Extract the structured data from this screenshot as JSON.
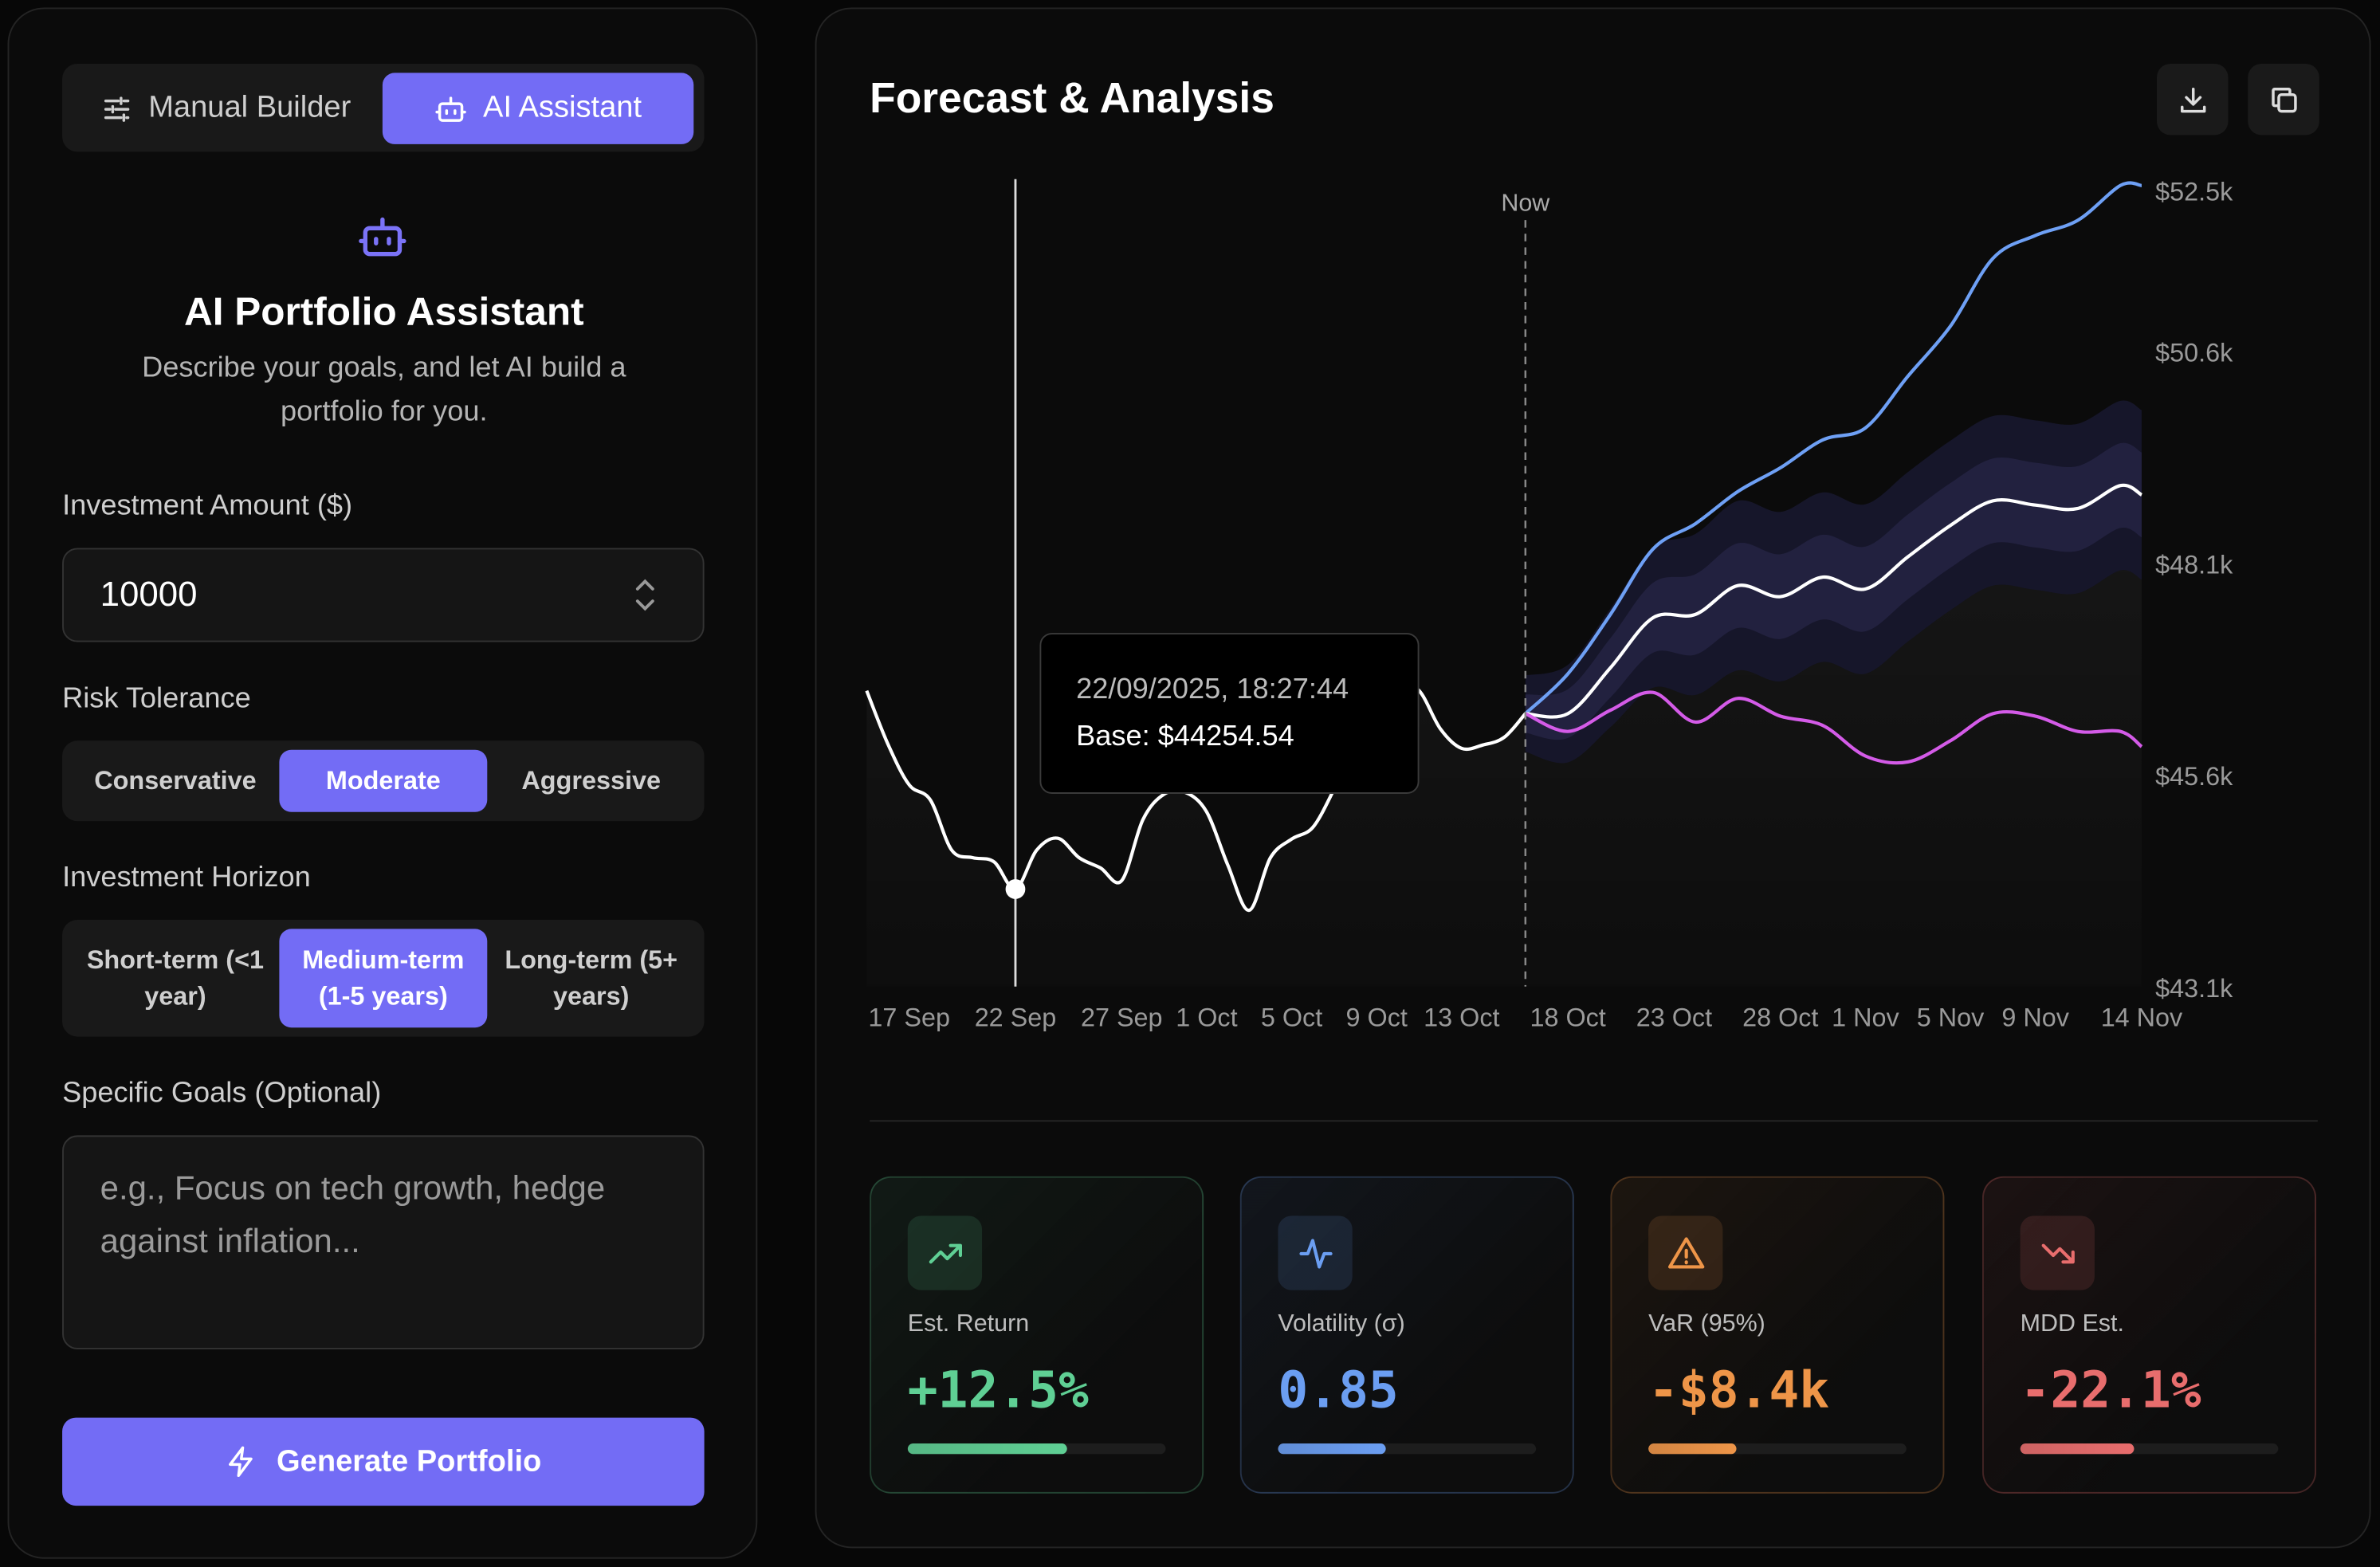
{
  "left_panel": {
    "tabs": [
      {
        "label": "Manual Builder",
        "icon": "sliders-icon",
        "active": false
      },
      {
        "label": "AI Assistant",
        "icon": "robot-icon",
        "active": true
      }
    ],
    "assistant_icon": "robot-icon",
    "title": "AI Portfolio Assistant",
    "subtitle_line1": "Describe your goals, and let AI build a",
    "subtitle_line2": "portfolio for you.",
    "investment_amount": {
      "label": "Investment Amount ($)",
      "value": "10000"
    },
    "risk_tolerance": {
      "label": "Risk Tolerance",
      "options": [
        "Conservative",
        "Moderate",
        "Aggressive"
      ],
      "selected": "Moderate"
    },
    "investment_horizon": {
      "label": "Investment Horizon",
      "options": [
        {
          "line1": "Short-term (<1",
          "line2": "year)"
        },
        {
          "line1": "Medium-term",
          "line2": "(1-5 years)"
        },
        {
          "line1": "Long-term (5+",
          "line2": "years)"
        }
      ],
      "selected": "Medium-term (1-5 years)"
    },
    "goals": {
      "label": "Specific Goals (Optional)",
      "placeholder": "e.g., Focus on tech growth, hedge against inflation..."
    },
    "generate_button": {
      "label": "Generate Portfolio",
      "icon": "lightning-icon"
    },
    "accent": "#736cf5"
  },
  "right_panel": {
    "title": "Forecast & Analysis",
    "actions": [
      {
        "icon": "download-icon"
      },
      {
        "icon": "copy-icon"
      }
    ],
    "tooltip": {
      "line1": "22/09/2025, 18:27:44",
      "line2": "Base: $44254.54"
    },
    "metrics": [
      {
        "label": "Est. Return",
        "value": "+12.5%",
        "icon": "trending-up-icon",
        "color": "#5fcf94",
        "bar_fraction": 0.62
      },
      {
        "label": "Volatility (σ)",
        "value": "0.85",
        "icon": "activity-icon",
        "color": "#6b9ef2",
        "bar_fraction": 0.42
      },
      {
        "label": "VaR (95%)",
        "value": "-$8.4k",
        "icon": "warning-icon",
        "color": "#ee9548",
        "bar_fraction": 0.34
      },
      {
        "label": "MDD Est.",
        "value": "-22.1%",
        "icon": "trending-down-icon",
        "color": "#e86d6d",
        "bar_fraction": 0.44
      }
    ]
  },
  "chart_data": {
    "type": "line",
    "now_label": "Now",
    "now_date": "2025-10-16",
    "hover_date": "2025-09-22",
    "x_ticks": [
      {
        "date": "2025-09-17",
        "label": "17 Sep"
      },
      {
        "date": "2025-09-22",
        "label": "22 Sep"
      },
      {
        "date": "2025-09-27",
        "label": "27 Sep"
      },
      {
        "date": "2025-10-01",
        "label": "1 Oct"
      },
      {
        "date": "2025-10-05",
        "label": "5 Oct"
      },
      {
        "date": "2025-10-09",
        "label": "9 Oct"
      },
      {
        "date": "2025-10-13",
        "label": "13 Oct"
      },
      {
        "date": "2025-10-18",
        "label": "18 Oct"
      },
      {
        "date": "2025-10-23",
        "label": "23 Oct"
      },
      {
        "date": "2025-10-28",
        "label": "28 Oct"
      },
      {
        "date": "2025-11-01",
        "label": "1 Nov"
      },
      {
        "date": "2025-11-05",
        "label": "5 Nov"
      },
      {
        "date": "2025-11-09",
        "label": "9 Nov"
      },
      {
        "date": "2025-11-14",
        "label": "14 Nov"
      }
    ],
    "y_ticks": [
      {
        "value": 52.5,
        "label": "$52.5k"
      },
      {
        "value": 50.6,
        "label": "$50.6k"
      },
      {
        "value": 48.1,
        "label": "$48.1k"
      },
      {
        "value": 45.6,
        "label": "$45.6k"
      },
      {
        "value": 43.1,
        "label": "$43.1k"
      }
    ],
    "y_unit": "$k",
    "ylim": [
      43.1,
      52.5
    ],
    "grid": false,
    "history": {
      "color": "#ffffff",
      "dates": [
        "2025-09-15",
        "2025-09-16",
        "2025-09-17",
        "2025-09-18",
        "2025-09-19",
        "2025-09-20",
        "2025-09-21",
        "2025-09-22",
        "2025-09-23",
        "2025-09-24",
        "2025-09-25",
        "2025-09-26",
        "2025-09-27",
        "2025-09-28",
        "2025-09-29",
        "2025-09-30",
        "2025-10-01",
        "2025-10-02",
        "2025-10-03",
        "2025-10-04",
        "2025-10-05",
        "2025-10-06",
        "2025-10-07",
        "2025-10-08",
        "2025-10-09",
        "2025-10-10",
        "2025-10-11",
        "2025-10-12",
        "2025-10-13",
        "2025-10-14",
        "2025-10-15",
        "2025-10-16"
      ],
      "values": [
        46.59,
        45.96,
        45.48,
        45.3,
        44.71,
        44.62,
        44.57,
        44.25,
        44.71,
        44.85,
        44.62,
        44.5,
        44.35,
        45.07,
        45.37,
        45.39,
        45.16,
        44.53,
        44.0,
        44.62,
        44.84,
        44.98,
        45.43,
        45.96,
        46.32,
        46.68,
        46.59,
        46.14,
        45.91,
        45.95,
        46.04,
        46.32
      ]
    },
    "forecast_dates": [
      "2025-10-16",
      "2025-10-18",
      "2025-10-20",
      "2025-10-22",
      "2025-10-24",
      "2025-10-26",
      "2025-10-28",
      "2025-10-30",
      "2025-11-01",
      "2025-11-03",
      "2025-11-05",
      "2025-11-07",
      "2025-11-09",
      "2025-11-11",
      "2025-11-13",
      "2025-11-14"
    ],
    "series": [
      {
        "key": "optimistic",
        "color": "#6ea0f5",
        "values": [
          46.32,
          46.79,
          47.49,
          48.26,
          48.56,
          48.94,
          49.22,
          49.55,
          49.69,
          50.3,
          50.89,
          51.69,
          51.96,
          52.14,
          52.55,
          52.55
        ]
      },
      {
        "key": "base",
        "color": "#ffffff",
        "values": [
          46.32,
          46.32,
          46.86,
          47.45,
          47.49,
          47.83,
          47.7,
          47.93,
          47.79,
          48.17,
          48.54,
          48.83,
          48.78,
          48.74,
          49.01,
          48.9
        ]
      },
      {
        "key": "pessimistic",
        "color": "#d45be8",
        "values": [
          46.32,
          46.11,
          46.36,
          46.57,
          46.22,
          46.5,
          46.29,
          46.18,
          45.82,
          45.75,
          46.0,
          46.32,
          46.29,
          46.11,
          46.11,
          45.93
        ]
      }
    ],
    "confidence_bands_k": [
      0.5,
      1.0
    ]
  }
}
